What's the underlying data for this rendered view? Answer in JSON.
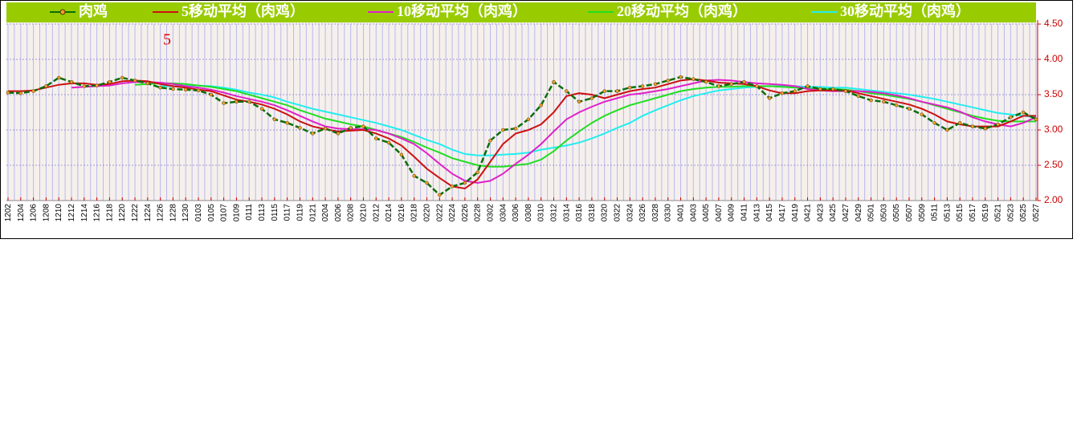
{
  "chart_data": {
    "type": "line",
    "annotation": "5",
    "categories": [
      "1202",
      "1204",
      "1206",
      "1208",
      "1210",
      "1212",
      "1214",
      "1216",
      "1218",
      "1220",
      "1222",
      "1224",
      "1226",
      "1228",
      "1230",
      "0103",
      "0105",
      "0107",
      "0109",
      "0111",
      "0113",
      "0115",
      "0117",
      "0119",
      "0121",
      "0204",
      "0206",
      "0208",
      "0210",
      "0212",
      "0214",
      "0216",
      "0218",
      "0220",
      "0222",
      "0224",
      "0226",
      "0228",
      "0302",
      "0304",
      "0306",
      "0308",
      "0310",
      "0312",
      "0314",
      "0316",
      "0318",
      "0320",
      "0322",
      "0324",
      "0326",
      "0328",
      "0330",
      "0401",
      "0403",
      "0405",
      "0407",
      "0409",
      "0411",
      "0413",
      "0415",
      "0417",
      "0419",
      "0421",
      "0423",
      "0425",
      "0427",
      "0429",
      "0501",
      "0503",
      "0505",
      "0507",
      "0509",
      "0511",
      "0513",
      "0515",
      "0517",
      "0519",
      "0521",
      "0523",
      "0525",
      "0527"
    ],
    "series": [
      {
        "name": "肉鸡",
        "color": "#0a6e0a",
        "marker_color": "#f0a030",
        "values": [
          3.53,
          3.52,
          3.55,
          3.62,
          3.74,
          3.68,
          3.62,
          3.63,
          3.68,
          3.74,
          3.7,
          3.66,
          3.6,
          3.58,
          3.57,
          3.56,
          3.5,
          3.38,
          3.4,
          3.4,
          3.3,
          3.15,
          3.1,
          3.03,
          2.95,
          3.02,
          2.95,
          3.03,
          3.05,
          2.88,
          2.82,
          2.65,
          2.35,
          2.25,
          2.08,
          2.2,
          2.25,
          2.4,
          2.85,
          3.0,
          3.02,
          3.15,
          3.35,
          3.68,
          3.55,
          3.4,
          3.45,
          3.55,
          3.55,
          3.6,
          3.62,
          3.65,
          3.7,
          3.75,
          3.72,
          3.68,
          3.62,
          3.65,
          3.68,
          3.62,
          3.45,
          3.52,
          3.55,
          3.62,
          3.58,
          3.58,
          3.55,
          3.48,
          3.42,
          3.4,
          3.35,
          3.3,
          3.22,
          3.1,
          3.0,
          3.1,
          3.05,
          3.02,
          3.08,
          3.18,
          3.25,
          3.15
        ]
      },
      {
        "name": "5移动平均（肉鸡）",
        "color": "#cc1010",
        "values": [
          3.55,
          3.55,
          3.56,
          3.6,
          3.64,
          3.66,
          3.66,
          3.64,
          3.65,
          3.69,
          3.7,
          3.69,
          3.65,
          3.62,
          3.6,
          3.57,
          3.55,
          3.49,
          3.43,
          3.4,
          3.36,
          3.3,
          3.22,
          3.12,
          3.05,
          3.01,
          2.98,
          2.99,
          3.0,
          2.95,
          2.88,
          2.78,
          2.62,
          2.45,
          2.32,
          2.2,
          2.17,
          2.3,
          2.55,
          2.8,
          2.95,
          3.0,
          3.08,
          3.25,
          3.48,
          3.52,
          3.5,
          3.45,
          3.5,
          3.55,
          3.58,
          3.6,
          3.65,
          3.7,
          3.72,
          3.7,
          3.67,
          3.66,
          3.65,
          3.62,
          3.56,
          3.52,
          3.52,
          3.55,
          3.56,
          3.56,
          3.56,
          3.52,
          3.48,
          3.44,
          3.4,
          3.36,
          3.3,
          3.22,
          3.12,
          3.08,
          3.05,
          3.05,
          3.05,
          3.12,
          3.2,
          3.2
        ]
      },
      {
        "name": "10移动平均（肉鸡）",
        "color": "#e020c8",
        "values": [
          null,
          null,
          null,
          null,
          null,
          3.6,
          3.61,
          3.62,
          3.63,
          3.66,
          3.68,
          3.68,
          3.67,
          3.65,
          3.62,
          3.6,
          3.57,
          3.53,
          3.48,
          3.44,
          3.4,
          3.35,
          3.28,
          3.2,
          3.12,
          3.05,
          3.02,
          3.01,
          3.01,
          3.0,
          2.95,
          2.88,
          2.8,
          2.67,
          2.52,
          2.38,
          2.28,
          2.25,
          2.28,
          2.38,
          2.52,
          2.65,
          2.8,
          2.98,
          3.15,
          3.25,
          3.33,
          3.4,
          3.45,
          3.5,
          3.52,
          3.55,
          3.58,
          3.62,
          3.66,
          3.7,
          3.71,
          3.7,
          3.68,
          3.66,
          3.65,
          3.64,
          3.62,
          3.58,
          3.56,
          3.55,
          3.55,
          3.55,
          3.54,
          3.52,
          3.49,
          3.45,
          3.4,
          3.36,
          3.32,
          3.26,
          3.18,
          3.12,
          3.08,
          3.05,
          3.1,
          3.18
        ]
      },
      {
        "name": "20移动平均（肉鸡）",
        "color": "#22dd22",
        "values": [
          null,
          null,
          null,
          null,
          null,
          null,
          null,
          null,
          null,
          null,
          3.64,
          3.65,
          3.66,
          3.66,
          3.65,
          3.63,
          3.61,
          3.58,
          3.55,
          3.5,
          3.45,
          3.4,
          3.35,
          3.28,
          3.22,
          3.16,
          3.12,
          3.08,
          3.05,
          3.0,
          2.95,
          2.9,
          2.83,
          2.75,
          2.68,
          2.6,
          2.55,
          2.5,
          2.48,
          2.48,
          2.5,
          2.52,
          2.58,
          2.7,
          2.85,
          2.98,
          3.1,
          3.2,
          3.28,
          3.35,
          3.4,
          3.45,
          3.5,
          3.55,
          3.58,
          3.6,
          3.61,
          3.61,
          3.62,
          3.62,
          3.62,
          3.61,
          3.6,
          3.59,
          3.58,
          3.58,
          3.57,
          3.55,
          3.52,
          3.5,
          3.47,
          3.44,
          3.4,
          3.35,
          3.3,
          3.25,
          3.2,
          3.16,
          3.13,
          3.12,
          3.12,
          3.12
        ]
      },
      {
        "name": "30移动平均（肉鸡）",
        "color": "#22eeee",
        "values": [
          null,
          null,
          null,
          null,
          null,
          null,
          null,
          null,
          null,
          null,
          null,
          null,
          3.62,
          3.62,
          3.63,
          3.63,
          3.62,
          3.6,
          3.57,
          3.53,
          3.5,
          3.46,
          3.4,
          3.35,
          3.3,
          3.26,
          3.22,
          3.18,
          3.14,
          3.1,
          3.05,
          3.0,
          2.93,
          2.86,
          2.8,
          2.72,
          2.66,
          2.64,
          2.64,
          2.65,
          2.66,
          2.68,
          2.72,
          2.75,
          2.78,
          2.82,
          2.88,
          2.95,
          3.03,
          3.1,
          3.2,
          3.28,
          3.35,
          3.42,
          3.48,
          3.52,
          3.56,
          3.58,
          3.6,
          3.61,
          3.62,
          3.62,
          3.62,
          3.61,
          3.61,
          3.6,
          3.6,
          3.58,
          3.56,
          3.54,
          3.52,
          3.5,
          3.47,
          3.44,
          3.4,
          3.36,
          3.32,
          3.28,
          3.24,
          3.22,
          3.2,
          3.18
        ]
      }
    ],
    "ylim": [
      2,
      4.5
    ],
    "yticks": [
      {
        "value": 2,
        "label": "2.00"
      },
      {
        "value": 2.5,
        "label": "2.50"
      },
      {
        "value": 3,
        "label": "3.00"
      },
      {
        "value": 3.5,
        "label": "3.50"
      },
      {
        "value": 4,
        "label": "4.00"
      },
      {
        "value": 4.5,
        "label": "4.50"
      }
    ],
    "y_axis_side": "right",
    "grid": true,
    "legend": "top"
  }
}
